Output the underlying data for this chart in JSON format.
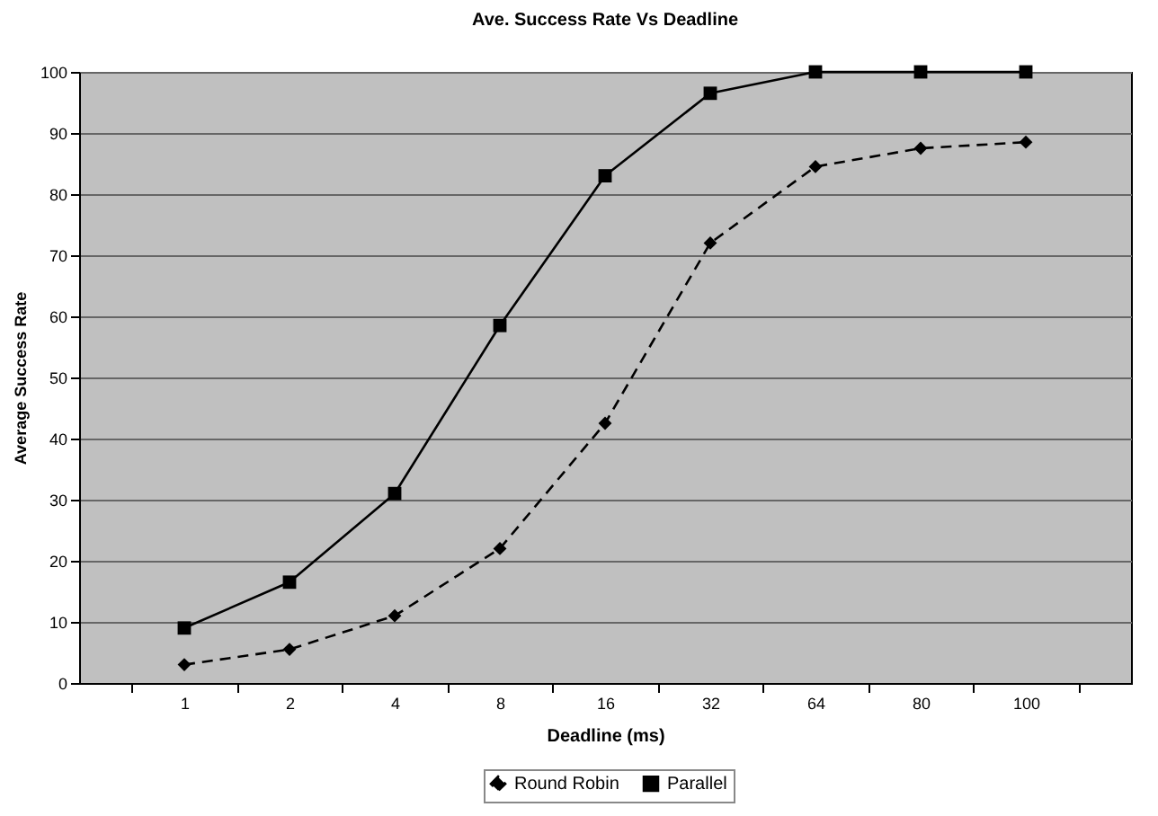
{
  "chart_data": {
    "type": "line",
    "title": "Ave. Success Rate Vs Deadline",
    "xlabel": "Deadline (ms)",
    "ylabel": "Average Success Rate",
    "categories": [
      "1",
      "2",
      "4",
      "8",
      "16",
      "32",
      "64",
      "80",
      "100"
    ],
    "series": [
      {
        "name": "Round Robin",
        "color": "#000000",
        "marker": "diamond",
        "line_style": "dashed",
        "values": [
          3,
          5.5,
          11,
          22,
          42.5,
          72,
          84.5,
          87.5,
          88.5
        ]
      },
      {
        "name": "Parallel",
        "color": "#000000",
        "marker": "square",
        "line_style": "solid",
        "values": [
          9,
          16.5,
          31,
          58.5,
          83,
          96.5,
          100,
          100,
          100
        ]
      }
    ],
    "ylim": [
      0,
      100
    ],
    "yticks": [
      0,
      10,
      20,
      30,
      40,
      50,
      60,
      70,
      80,
      90,
      100
    ],
    "grid": "y",
    "legend": "bottom"
  }
}
